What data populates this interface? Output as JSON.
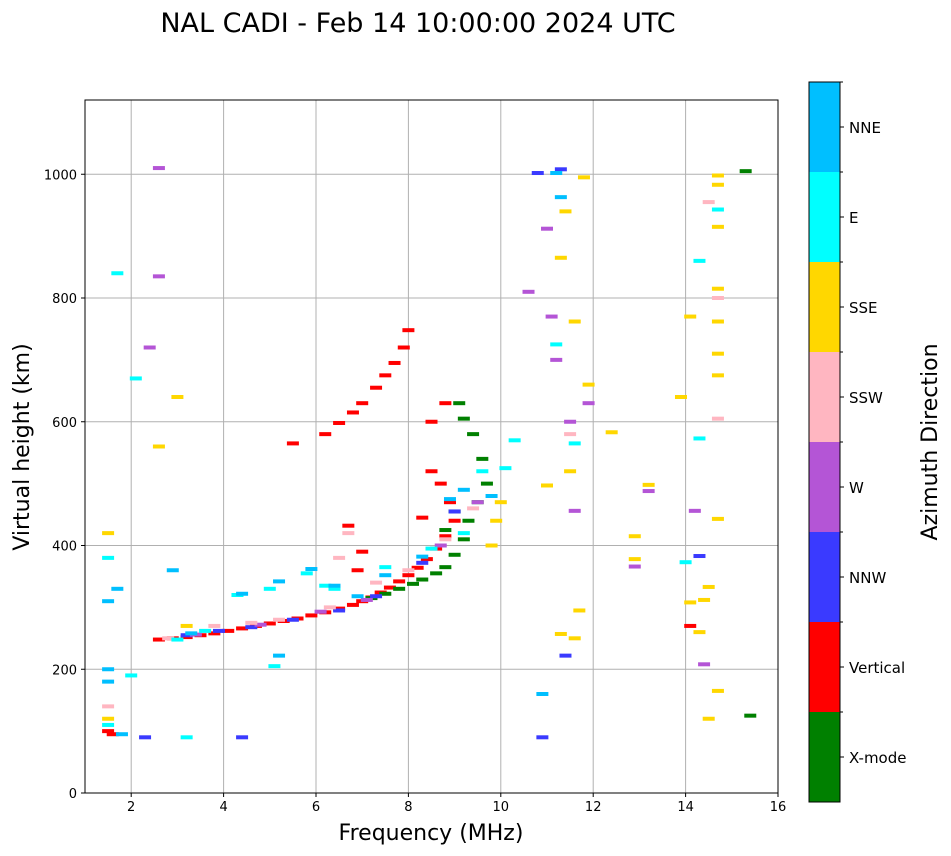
{
  "chart_data": {
    "type": "scatter",
    "title": "NAL CADI - Feb 14 10:00:00 2024 UTC",
    "xlabel": "Frequency (MHz)",
    "ylabel": "Virtual height (km)",
    "xlim": [
      1,
      16
    ],
    "ylim": [
      0,
      1120
    ],
    "xticks": [
      2,
      4,
      6,
      8,
      10,
      12,
      14,
      16
    ],
    "yticks": [
      0,
      200,
      400,
      600,
      800,
      1000
    ],
    "grid": true,
    "colorbar": {
      "label": "Azimuth Direction",
      "categories": [
        "X-mode",
        "Vertical",
        "NNW",
        "W",
        "SSW",
        "SSE",
        "E",
        "NNE"
      ],
      "colors": {
        "X-mode": "#008000",
        "Vertical": "#ff0000",
        "NNW": "#3a3aff",
        "W": "#b455d6",
        "SSW": "#ffb6c1",
        "SSE": "#ffd700",
        "E": "#00ffff",
        "NNE": "#00bfff"
      }
    },
    "series": [
      {
        "name": "Vertical",
        "points": [
          [
            2.6,
            248
          ],
          [
            2.9,
            250
          ],
          [
            3.2,
            252
          ],
          [
            3.5,
            255
          ],
          [
            3.8,
            258
          ],
          [
            4.1,
            262
          ],
          [
            4.4,
            266
          ],
          [
            4.7,
            270
          ],
          [
            5.0,
            274
          ],
          [
            5.3,
            278
          ],
          [
            5.6,
            282
          ],
          [
            5.9,
            287
          ],
          [
            6.2,
            292
          ],
          [
            6.5,
            298
          ],
          [
            6.8,
            304
          ],
          [
            7.0,
            310
          ],
          [
            7.2,
            316
          ],
          [
            7.4,
            324
          ],
          [
            7.6,
            332
          ],
          [
            7.8,
            342
          ],
          [
            8.0,
            352
          ],
          [
            8.2,
            364
          ],
          [
            8.4,
            378
          ],
          [
            8.6,
            395
          ],
          [
            8.8,
            415
          ],
          [
            9.0,
            440
          ],
          [
            8.9,
            470
          ],
          [
            8.7,
            500
          ],
          [
            8.5,
            520
          ],
          [
            8.3,
            445
          ],
          [
            8.5,
            600
          ],
          [
            8.8,
            630
          ],
          [
            6.2,
            580
          ],
          [
            6.5,
            598
          ],
          [
            6.8,
            615
          ],
          [
            7.0,
            630
          ],
          [
            7.3,
            655
          ],
          [
            7.5,
            675
          ],
          [
            7.7,
            695
          ],
          [
            7.9,
            720
          ],
          [
            8.0,
            748
          ],
          [
            1.5,
            100
          ],
          [
            1.6,
            95
          ],
          [
            5.5,
            565
          ],
          [
            14.1,
            270
          ],
          [
            6.7,
            432
          ],
          [
            7.0,
            390
          ],
          [
            6.9,
            360
          ]
        ]
      },
      {
        "name": "X-mode",
        "points": [
          [
            7.2,
            315
          ],
          [
            7.5,
            322
          ],
          [
            7.8,
            330
          ],
          [
            8.1,
            338
          ],
          [
            8.3,
            345
          ],
          [
            8.6,
            355
          ],
          [
            8.8,
            365
          ],
          [
            9.0,
            385
          ],
          [
            9.2,
            410
          ],
          [
            9.3,
            440
          ],
          [
            9.5,
            470
          ],
          [
            9.7,
            500
          ],
          [
            9.6,
            540
          ],
          [
            9.4,
            580
          ],
          [
            9.2,
            605
          ],
          [
            9.1,
            630
          ],
          [
            9.0,
            455
          ],
          [
            8.8,
            425
          ],
          [
            15.4,
            125
          ],
          [
            15.3,
            1005
          ]
        ]
      },
      {
        "name": "NNW",
        "points": [
          [
            3.2,
            255
          ],
          [
            3.9,
            262
          ],
          [
            4.6,
            268
          ],
          [
            5.5,
            280
          ],
          [
            6.5,
            295
          ],
          [
            7.3,
            318
          ],
          [
            8.3,
            372
          ],
          [
            9.0,
            455
          ],
          [
            10.8,
            1002
          ],
          [
            11.3,
            1008
          ],
          [
            11.4,
            222
          ],
          [
            10.9,
            90
          ],
          [
            14.3,
            383
          ],
          [
            4.4,
            90
          ],
          [
            2.3,
            90
          ]
        ]
      },
      {
        "name": "W",
        "points": [
          [
            3.4,
            256
          ],
          [
            4.8,
            272
          ],
          [
            6.1,
            293
          ],
          [
            7.1,
            312
          ],
          [
            8.7,
            400
          ],
          [
            9.5,
            470
          ],
          [
            10.6,
            810
          ],
          [
            11.0,
            912
          ],
          [
            11.1,
            770
          ],
          [
            11.5,
            600
          ],
          [
            11.9,
            630
          ],
          [
            12.9,
            366
          ],
          [
            13.2,
            488
          ],
          [
            14.2,
            456
          ],
          [
            14.4,
            208
          ],
          [
            2.6,
            1010
          ],
          [
            2.6,
            835
          ],
          [
            2.4,
            720
          ],
          [
            11.2,
            700
          ],
          [
            11.6,
            456
          ]
        ]
      },
      {
        "name": "SSW",
        "points": [
          [
            2.8,
            250
          ],
          [
            3.8,
            270
          ],
          [
            5.2,
            280
          ],
          [
            6.3,
            300
          ],
          [
            6.7,
            420
          ],
          [
            6.5,
            380
          ],
          [
            7.3,
            340
          ],
          [
            8.0,
            360
          ],
          [
            8.8,
            410
          ],
          [
            9.4,
            460
          ],
          [
            14.5,
            955
          ],
          [
            14.7,
            800
          ],
          [
            14.7,
            605
          ],
          [
            1.5,
            140
          ],
          [
            11.5,
            580
          ],
          [
            4.6,
            275
          ]
        ]
      },
      {
        "name": "SSE",
        "points": [
          [
            1.5,
            420
          ],
          [
            1.5,
            120
          ],
          [
            3.0,
            640
          ],
          [
            2.6,
            560
          ],
          [
            3.2,
            270
          ],
          [
            9.8,
            400
          ],
          [
            9.9,
            440
          ],
          [
            10.0,
            470
          ],
          [
            11.0,
            497
          ],
          [
            11.3,
            257
          ],
          [
            11.5,
            520
          ],
          [
            11.6,
            250
          ],
          [
            11.7,
            295
          ],
          [
            11.9,
            660
          ],
          [
            11.8,
            995
          ],
          [
            12.4,
            583
          ],
          [
            12.9,
            415
          ],
          [
            12.9,
            378
          ],
          [
            13.2,
            498
          ],
          [
            13.9,
            640
          ],
          [
            14.1,
            770
          ],
          [
            14.1,
            308
          ],
          [
            14.3,
            260
          ],
          [
            14.4,
            312
          ],
          [
            14.5,
            333
          ],
          [
            14.5,
            120
          ],
          [
            14.7,
            165
          ],
          [
            14.7,
            443
          ],
          [
            14.7,
            675
          ],
          [
            14.7,
            710
          ],
          [
            14.7,
            762
          ],
          [
            14.7,
            815
          ],
          [
            14.7,
            915
          ],
          [
            14.7,
            983
          ],
          [
            14.7,
            998
          ],
          [
            11.3,
            865
          ],
          [
            11.4,
            940
          ],
          [
            11.6,
            762
          ]
        ]
      },
      {
        "name": "E",
        "points": [
          [
            1.5,
            380
          ],
          [
            1.5,
            110
          ],
          [
            2.0,
            190
          ],
          [
            3.0,
            248
          ],
          [
            3.6,
            262
          ],
          [
            4.3,
            320
          ],
          [
            5.0,
            330
          ],
          [
            5.8,
            355
          ],
          [
            6.2,
            335
          ],
          [
            6.4,
            330
          ],
          [
            7.5,
            365
          ],
          [
            8.5,
            395
          ],
          [
            9.2,
            420
          ],
          [
            9.6,
            520
          ],
          [
            10.1,
            525
          ],
          [
            10.3,
            570
          ],
          [
            11.2,
            725
          ],
          [
            11.6,
            565
          ],
          [
            14.0,
            373
          ],
          [
            14.3,
            573
          ],
          [
            14.7,
            943
          ],
          [
            14.3,
            860
          ],
          [
            1.7,
            840
          ],
          [
            5.1,
            205
          ],
          [
            2.1,
            670
          ],
          [
            3.2,
            90
          ]
        ]
      },
      {
        "name": "NNE",
        "points": [
          [
            1.5,
            310
          ],
          [
            1.5,
            180
          ],
          [
            1.5,
            200
          ],
          [
            1.8,
            95
          ],
          [
            3.3,
            258
          ],
          [
            4.4,
            322
          ],
          [
            5.2,
            342
          ],
          [
            5.9,
            362
          ],
          [
            6.4,
            335
          ],
          [
            6.9,
            318
          ],
          [
            7.5,
            352
          ],
          [
            8.3,
            382
          ],
          [
            8.9,
            475
          ],
          [
            9.2,
            490
          ],
          [
            9.8,
            480
          ],
          [
            10.9,
            160
          ],
          [
            11.3,
            963
          ],
          [
            11.2,
            1002
          ],
          [
            5.2,
            222
          ],
          [
            2.9,
            360
          ],
          [
            1.7,
            330
          ]
        ]
      }
    ]
  }
}
